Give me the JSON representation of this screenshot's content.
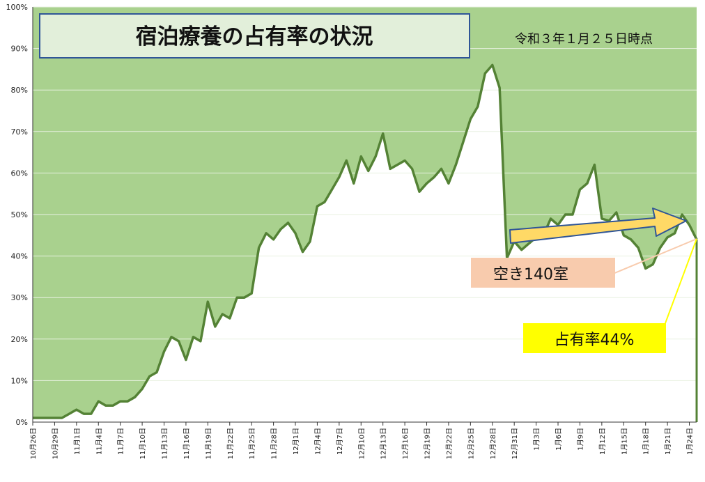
{
  "chart_data": {
    "type": "area",
    "title": "宿泊療養の占有率の状況",
    "as_of": "令和３年１月２５日時点",
    "ylim": [
      0,
      100
    ],
    "y_ticks": [
      "0%",
      "10%",
      "20%",
      "30%",
      "40%",
      "50%",
      "60%",
      "70%",
      "80%",
      "90%",
      "100%"
    ],
    "x_ticks": [
      "10月26日",
      "10月29日",
      "11月1日",
      "11月4日",
      "11月7日",
      "11月10日",
      "11月13日",
      "11月16日",
      "11月19日",
      "11月22日",
      "11月25日",
      "11月28日",
      "12月1日",
      "12月4日",
      "12月7日",
      "12月10日",
      "12月13日",
      "12月16日",
      "12月19日",
      "12月22日",
      "12月25日",
      "12月28日",
      "12月31日",
      "1月3日",
      "1月6日",
      "1月9日",
      "1月12日",
      "1月15日",
      "1月18日",
      "1月21日",
      "1月24日"
    ],
    "x_start": "10月26日",
    "x_end": "1月25日",
    "grid": true,
    "series": [
      {
        "values": [
          1,
          1,
          1,
          1,
          1,
          2,
          3,
          2,
          2,
          5,
          4,
          4,
          5,
          5,
          6,
          8,
          11,
          12,
          17,
          20.5,
          19.5,
          15,
          20.5,
          19.5,
          29,
          23,
          26,
          25,
          30,
          30,
          31,
          42,
          45.5,
          44,
          46.5,
          48,
          45.5,
          41,
          43.5,
          52,
          53,
          56,
          59,
          63,
          57.5,
          64,
          60.5,
          64,
          69.5,
          61,
          62,
          63,
          61,
          55.5,
          57.5,
          59,
          61,
          57.5,
          62,
          67.5,
          73,
          76,
          84,
          86,
          80.5,
          39.5,
          43.5,
          41.5,
          43,
          44.5,
          45,
          49,
          47.5,
          50,
          50,
          56,
          57.5,
          62,
          49,
          48.5,
          50.5,
          45,
          44,
          42,
          37,
          38,
          42,
          44.5,
          45.5,
          50,
          47.5,
          44
        ]
      }
    ],
    "annotations": [
      {
        "text": "空き140室",
        "color": "#f8cbad"
      },
      {
        "text": "占有率44%",
        "color": "#ffff00"
      }
    ],
    "colors": {
      "fill": "#a9d18e",
      "line": "#548235",
      "title_box": "#e2efda",
      "title_border": "#2f5597",
      "arrow": "#ffd966",
      "arrow_border": "#2f5597"
    }
  }
}
